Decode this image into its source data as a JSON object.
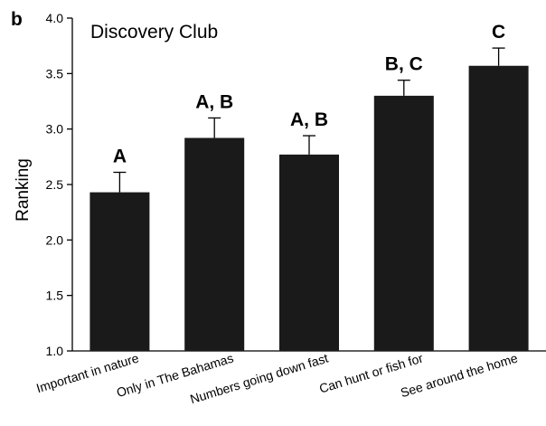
{
  "chart_data": {
    "type": "bar",
    "panel_label": "b",
    "title": "Discovery Club",
    "ylabel": "Ranking",
    "xlabel": "",
    "ylim": [
      1.0,
      4.0
    ],
    "yticks": [
      "1.0",
      "1.5",
      "2.0",
      "2.5",
      "3.0",
      "3.5",
      "4.0"
    ],
    "categories": [
      "Important in nature",
      "Only in The Bahamas",
      "Numbers going down fast",
      "Can hunt or fish for",
      "See around the home"
    ],
    "values": [
      2.43,
      2.92,
      2.77,
      3.3,
      3.57
    ],
    "error_upper": [
      0.18,
      0.18,
      0.17,
      0.14,
      0.16
    ],
    "significance_labels": [
      "A",
      "A, B",
      "A, B",
      "B, C",
      "C"
    ],
    "bar_color": "#1a1a1a",
    "grid": false
  }
}
